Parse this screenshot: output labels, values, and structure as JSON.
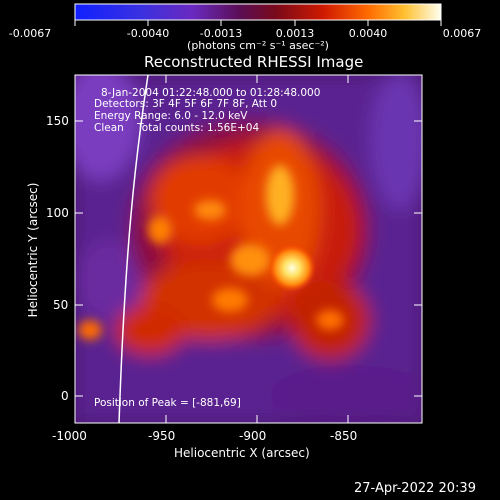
{
  "colorbar": {
    "tick_labels": [
      "-0.0067",
      "-0.0040",
      "-0.0013",
      "0.0013",
      "0.0040",
      "0.0067"
    ],
    "unit_label": "(photons cm⁻² s⁻¹ asec⁻²)"
  },
  "plot": {
    "title": "Reconstructed RHESSI Image",
    "xlabel": "Heliocentric X (arcsec)",
    "ylabel": "Heliocentric Y (arcsec)",
    "x_ticks": [
      "-1000",
      "-950",
      "-900",
      "-850"
    ],
    "y_ticks": [
      "0",
      "50",
      "100",
      "150"
    ]
  },
  "annotation": {
    "line1": "8-Jan-2004 01:22:48.000 to 01:28:48.000",
    "line2": "Detectors: 3F 4F 5F 6F 7F 8F, Att 0",
    "line3": "Energy Range: 6.0 - 12.0 keV",
    "line4": "Clean    Total counts: 1.56E+04",
    "peak": "Position of Peak = [-881,69]"
  },
  "footer": {
    "datestamp": "27-Apr-2022 20:39"
  },
  "chart_data": {
    "type": "heatmap",
    "title": "Reconstructed RHESSI Image",
    "xlabel": "Heliocentric X (arcsec)",
    "ylabel": "Heliocentric Y (arcsec)",
    "xlim": [
      -1000,
      -810
    ],
    "ylim": [
      -15,
      180
    ],
    "colorbar_range": [
      -0.0067,
      0.0067
    ],
    "peak": {
      "x": -881,
      "y": 69
    },
    "colors": {
      "low": "#2020ff",
      "mid": "#8a3fd0",
      "high": "#ff5a10",
      "max": "#ffffb0"
    }
  }
}
